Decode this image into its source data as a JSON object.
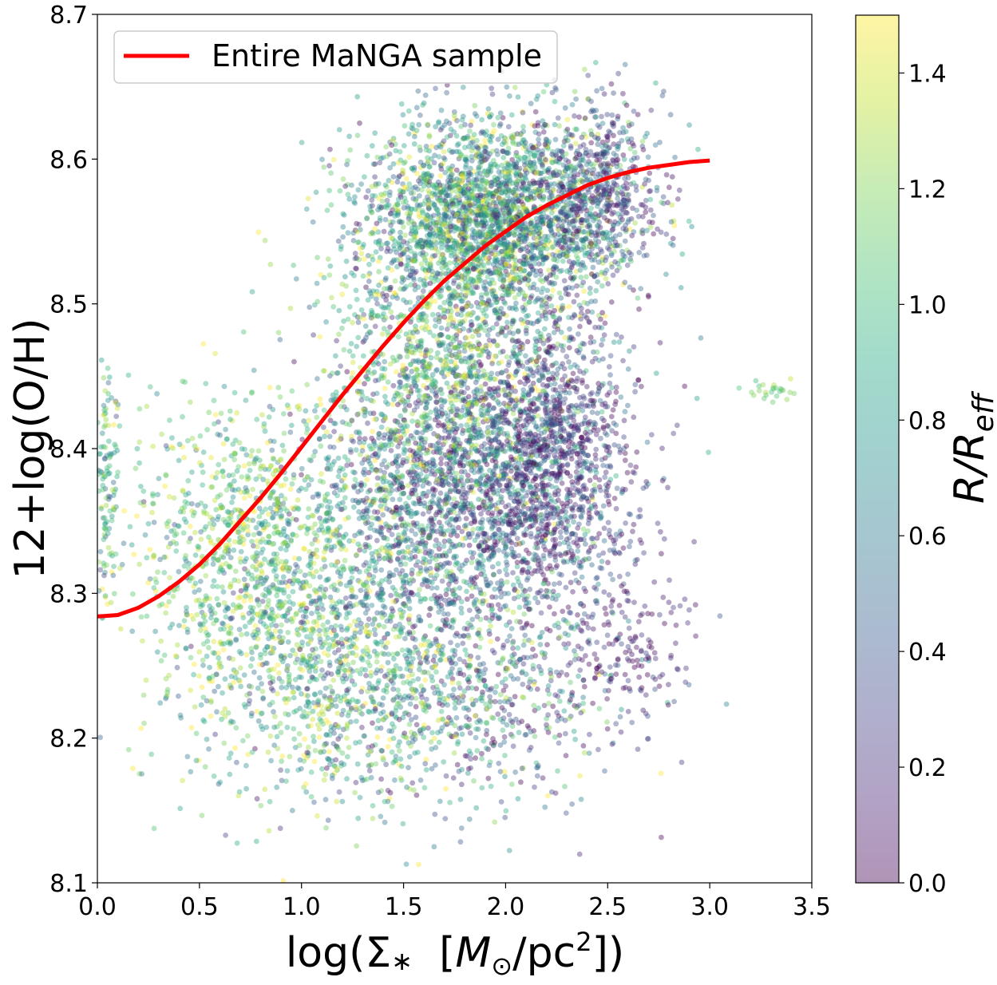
{
  "chart_data": {
    "type": "scatter",
    "xlabel": "log(Σ∗  [M⊙/pc²])",
    "ylabel": "12+log(O/H)",
    "xlim": [
      0.0,
      3.5
    ],
    "ylim": [
      8.1,
      8.7
    ],
    "x_ticks": [
      "0.0",
      "0.5",
      "1.0",
      "1.5",
      "2.0",
      "2.5",
      "3.0",
      "3.5"
    ],
    "y_ticks": [
      "8.1",
      "8.2",
      "8.3",
      "8.4",
      "8.5",
      "8.6",
      "8.7"
    ],
    "grid": false,
    "legend": {
      "position": "top-left",
      "entries": [
        {
          "label": "Entire MaNGA sample",
          "color": "#ff0000"
        }
      ]
    },
    "colorbar": {
      "label": "R/R_eff",
      "label_main": "R/R",
      "label_sub": "eff",
      "range": [
        0.0,
        1.5
      ],
      "ticks": [
        "0.0",
        "0.2",
        "0.4",
        "0.6",
        "0.8",
        "1.0",
        "1.2",
        "1.4"
      ],
      "colormap": "viridis",
      "alpha": 0.4
    },
    "series": [
      {
        "name": "Entire MaNGA sample",
        "kind": "line",
        "color": "#ff0000",
        "x": [
          0.0,
          0.1,
          0.2,
          0.3,
          0.4,
          0.5,
          0.6,
          0.7,
          0.8,
          0.9,
          1.0,
          1.1,
          1.2,
          1.3,
          1.4,
          1.5,
          1.6,
          1.7,
          1.8,
          1.9,
          2.0,
          2.1,
          2.2,
          2.3,
          2.4,
          2.5,
          2.6,
          2.7,
          2.8,
          2.9,
          3.0
        ],
        "y": [
          8.284,
          8.285,
          8.29,
          8.298,
          8.308,
          8.32,
          8.334,
          8.35,
          8.366,
          8.383,
          8.401,
          8.419,
          8.437,
          8.454,
          8.471,
          8.487,
          8.502,
          8.516,
          8.528,
          8.54,
          8.55,
          8.56,
          8.568,
          8.575,
          8.582,
          8.587,
          8.591,
          8.594,
          8.596,
          8.598,
          8.599
        ]
      },
      {
        "name": "",
        "kind": "scatter",
        "color_by": "R/R_eff",
        "clusters": [
          {
            "x": 1.95,
            "y": 8.56,
            "sx": 0.33,
            "sy": 0.035,
            "n": 2600,
            "c": 0.75,
            "cs": 0.4
          },
          {
            "x": 1.85,
            "y": 8.38,
            "sx": 0.35,
            "sy": 0.05,
            "n": 2200,
            "c": 0.45,
            "cs": 0.4
          },
          {
            "x": 1.7,
            "y": 8.47,
            "sx": 0.28,
            "sy": 0.05,
            "n": 900,
            "c": 1.0,
            "cs": 0.35
          },
          {
            "x": 2.25,
            "y": 8.4,
            "sx": 0.2,
            "sy": 0.05,
            "n": 800,
            "c": 0.2,
            "cs": 0.2
          },
          {
            "x": 2.45,
            "y": 8.58,
            "sx": 0.15,
            "sy": 0.03,
            "n": 500,
            "c": 0.3,
            "cs": 0.25
          },
          {
            "x": 1.1,
            "y": 8.3,
            "sx": 0.35,
            "sy": 0.06,
            "n": 1200,
            "c": 0.9,
            "cs": 0.35
          },
          {
            "x": 0.65,
            "y": 8.33,
            "sx": 0.25,
            "sy": 0.06,
            "n": 600,
            "c": 1.1,
            "cs": 0.3
          },
          {
            "x": 1.9,
            "y": 8.24,
            "sx": 0.35,
            "sy": 0.04,
            "n": 600,
            "c": 0.5,
            "cs": 0.45
          },
          {
            "x": 1.25,
            "y": 8.22,
            "sx": 0.4,
            "sy": 0.04,
            "n": 500,
            "c": 0.9,
            "cs": 0.4
          },
          {
            "x": 0.05,
            "y": 8.37,
            "sx": 0.03,
            "sy": 0.05,
            "n": 120,
            "c": 0.9,
            "cs": 0.3
          },
          {
            "x": 3.3,
            "y": 8.44,
            "sx": 0.08,
            "sy": 0.004,
            "n": 25,
            "c": 1.15,
            "cs": 0.1
          },
          {
            "x": 2.6,
            "y": 8.27,
            "sx": 0.15,
            "sy": 0.03,
            "n": 150,
            "c": 0.15,
            "cs": 0.15
          }
        ]
      }
    ]
  }
}
